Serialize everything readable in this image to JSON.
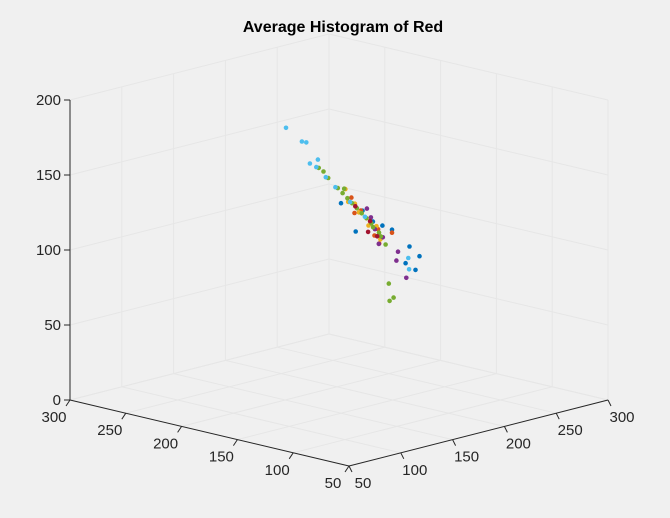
{
  "chart_data": {
    "type": "scatter",
    "title": "Average Histogram of Red",
    "xlabel": "",
    "ylabel": "",
    "zlabel": "",
    "view": "3d",
    "xlim": [
      50,
      300
    ],
    "ylim": [
      50,
      300
    ],
    "zlim": [
      0,
      200
    ],
    "x_ticks": [
      "50",
      "100",
      "150",
      "200",
      "250",
      "300"
    ],
    "y_ticks": [
      "50",
      "100",
      "150",
      "200",
      "250",
      "300"
    ],
    "z_ticks": [
      "0",
      "50",
      "100",
      "150",
      "200"
    ],
    "grid": true,
    "series_colors": [
      "#0072BD",
      "#D95319",
      "#EDB120",
      "#7E2F8E",
      "#77AC30",
      "#4DBEEE",
      "#A2142F"
    ],
    "series": [
      {
        "color": "#0072BD",
        "points": [
          [
            170,
            140,
            126
          ],
          [
            190,
            150,
            118
          ],
          [
            210,
            160,
            110
          ],
          [
            180,
            120,
            100
          ],
          [
            200,
            135,
            105
          ],
          [
            160,
            140,
            135
          ],
          [
            150,
            150,
            140
          ],
          [
            215,
            140,
            95
          ],
          [
            175,
            160,
            115
          ],
          [
            195,
            125,
            92
          ]
        ]
      },
      {
        "color": "#D95319",
        "points": [
          [
            160,
            150,
            142
          ],
          [
            180,
            160,
            128
          ],
          [
            200,
            170,
            115
          ],
          [
            220,
            185,
            100
          ],
          [
            175,
            140,
            120
          ],
          [
            210,
            160,
            108
          ],
          [
            190,
            175,
            122
          ],
          [
            230,
            190,
            92
          ]
        ]
      },
      {
        "color": "#EDB120",
        "points": [
          [
            165,
            160,
            145
          ],
          [
            185,
            170,
            130
          ],
          [
            205,
            185,
            118
          ],
          [
            225,
            195,
            104
          ],
          [
            195,
            160,
            115
          ],
          [
            215,
            175,
            100
          ],
          [
            200,
            190,
            125
          ]
        ]
      },
      {
        "color": "#7E2F8E",
        "points": [
          [
            175,
            150,
            132
          ],
          [
            195,
            165,
            120
          ],
          [
            215,
            180,
            106
          ],
          [
            235,
            195,
            90
          ],
          [
            205,
            150,
            98
          ],
          [
            225,
            170,
            85
          ],
          [
            185,
            145,
            112
          ],
          [
            240,
            175,
            70
          ]
        ]
      },
      {
        "color": "#77AC30",
        "points": [
          [
            150,
            170,
            160
          ],
          [
            170,
            180,
            148
          ],
          [
            190,
            190,
            136
          ],
          [
            210,
            200,
            124
          ],
          [
            230,
            210,
            112
          ],
          [
            250,
            220,
            100
          ],
          [
            265,
            228,
            90
          ],
          [
            280,
            235,
            80
          ],
          [
            290,
            240,
            72
          ],
          [
            180,
            175,
            140
          ],
          [
            200,
            195,
            130
          ],
          [
            220,
            205,
            118
          ],
          [
            240,
            215,
            106
          ],
          [
            260,
            225,
            94
          ],
          [
            275,
            232,
            84
          ],
          [
            160,
            175,
            155
          ],
          [
            250,
            200,
            60
          ],
          [
            240,
            190,
            52
          ],
          [
            260,
            205,
            48
          ]
        ]
      },
      {
        "color": "#4DBEEE",
        "points": [
          [
            140,
            190,
            185
          ],
          [
            150,
            185,
            175
          ],
          [
            160,
            180,
            162
          ],
          [
            180,
            200,
            150
          ],
          [
            200,
            210,
            138
          ],
          [
            220,
            220,
            126
          ],
          [
            245,
            230,
            110
          ],
          [
            270,
            240,
            94
          ],
          [
            165,
            195,
            170
          ],
          [
            190,
            215,
            148
          ],
          [
            215,
            150,
            92
          ],
          [
            205,
            140,
            88
          ]
        ]
      },
      {
        "color": "#A2142F",
        "points": [
          [
            180,
            165,
            130
          ],
          [
            205,
            175,
            114
          ],
          [
            230,
            200,
            98
          ],
          [
            255,
            215,
            88
          ]
        ]
      }
    ]
  }
}
